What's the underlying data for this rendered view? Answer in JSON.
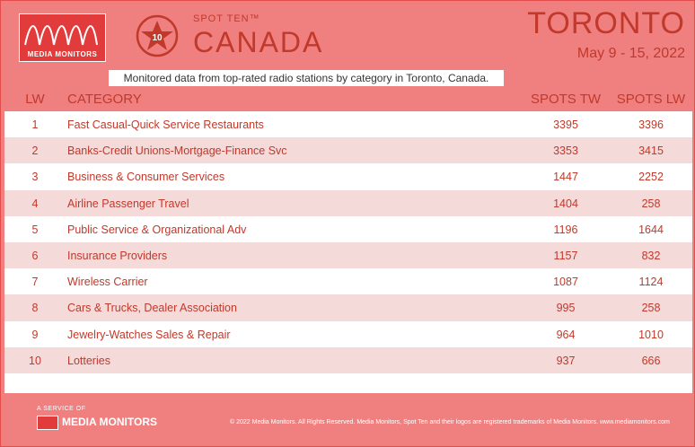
{
  "brand": {
    "logo_text": "MEDIA MONITORS",
    "spot_ten": "SPOT TEN™",
    "badge": "10",
    "country": "CANADA"
  },
  "header": {
    "city": "TORONTO",
    "dates": "May 9 - 15, 2022"
  },
  "subtitle": "Monitored data from top-rated radio stations by category in Toronto, Canada.",
  "columns": {
    "lw": "LW",
    "category": "CATEGORY",
    "spots_tw": "SPOTS TW",
    "spots_lw": "SPOTS LW"
  },
  "rows": [
    {
      "lw": "1",
      "category": "Fast Casual-Quick Service Restaurants",
      "tw": "3395",
      "lwv": "3396"
    },
    {
      "lw": "2",
      "category": "Banks-Credit Unions-Mortgage-Finance Svc",
      "tw": "3353",
      "lwv": "3415"
    },
    {
      "lw": "3",
      "category": "Business & Consumer Services",
      "tw": "1447",
      "lwv": "2252"
    },
    {
      "lw": "4",
      "category": "Airline Passenger Travel",
      "tw": "1404",
      "lwv": "258"
    },
    {
      "lw": "5",
      "category": "Public Service & Organizational Adv",
      "tw": "1196",
      "lwv": "1644"
    },
    {
      "lw": "6",
      "category": "Insurance Providers",
      "tw": "1157",
      "lwv": "832"
    },
    {
      "lw": "7",
      "category": "Wireless Carrier",
      "tw": "1087",
      "lwv": "1124"
    },
    {
      "lw": "8",
      "category": "Cars & Trucks, Dealer Association",
      "tw": "995",
      "lwv": "258"
    },
    {
      "lw": "9",
      "category": "Jewelry-Watches Sales & Repair",
      "tw": "964",
      "lwv": "1010"
    },
    {
      "lw": "10",
      "category": "Lotteries",
      "tw": "937",
      "lwv": "666"
    }
  ],
  "footer": {
    "service": "A SERVICE OF",
    "logo_text": "MEDIA MONITORS",
    "copyright": "© 2022 Media Monitors. All Rights Reserved. Media Monitors, Spot Ten and their logos are registered trademarks of Media Monitors. www.mediamonitors.com"
  },
  "colors": {
    "accent": "#c0392b",
    "background": "#f08080",
    "row_alt": "#f5dada"
  }
}
